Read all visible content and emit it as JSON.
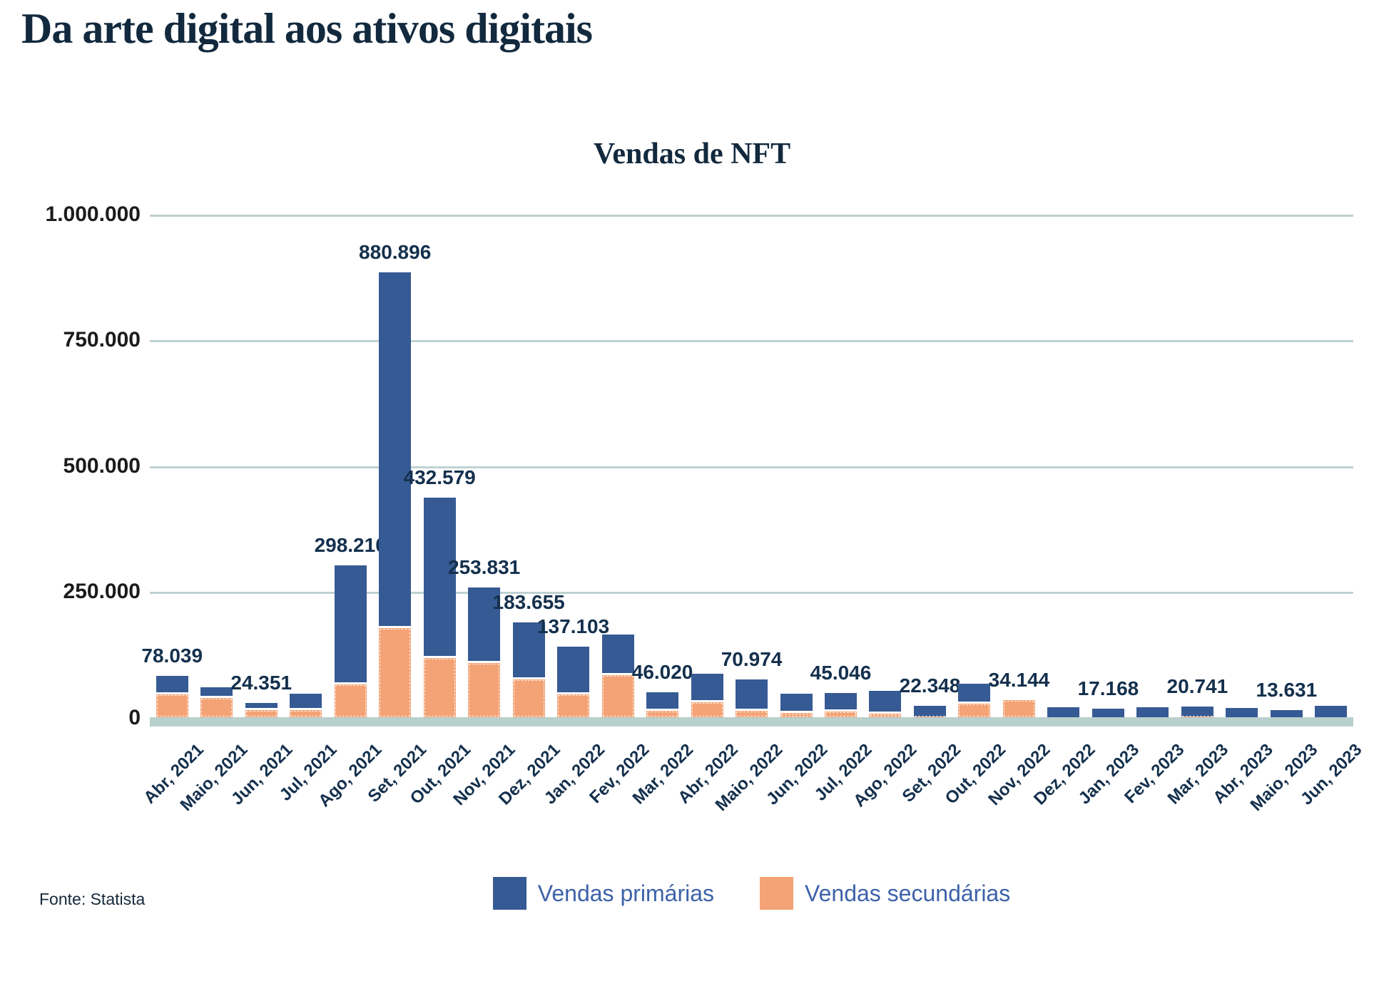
{
  "page": {
    "title": "Da arte digital aos ativos digitais"
  },
  "chart": {
    "title": "Vendas de NFT"
  },
  "y_axis": {
    "ticks": [
      "1.000.000",
      "750.000",
      "500.000",
      "250.000",
      "0"
    ]
  },
  "legend": {
    "primary": "Vendas primárias",
    "secondary": "Vendas secundárias"
  },
  "footer": {
    "source": "Fonte: Statista"
  },
  "colors": {
    "primary": "#365a93",
    "secondary": "#f3a376",
    "grid": "#bfd2d3",
    "axis_band": "#b9d0cd",
    "data_label": "#14304d",
    "legend_text": "#3d61a9",
    "title": "#12293e",
    "tick_text": "#1b1b1b"
  },
  "chart_data": {
    "type": "bar",
    "stacked": true,
    "title": "Vendas de NFT",
    "xlabel": "",
    "ylabel": "",
    "ylim": [
      0,
      1000000
    ],
    "grid": "horizontal",
    "legend_position": "bottom",
    "categories": [
      "Abr, 2021",
      "Maio, 2021",
      "Jun, 2021",
      "Jul, 2021",
      "Ago, 2021",
      "Set, 2021",
      "Out, 2021",
      "Nov, 2021",
      "Dez, 2021",
      "Jan, 2022",
      "Fev, 2022",
      "Mar, 2022",
      "Abr, 2022",
      "Maio, 2022",
      "Jun, 2022",
      "Jul, 2022",
      "Ago, 2022",
      "Set, 2022",
      "Out, 2022",
      "Nov, 2022",
      "Dez, 2022",
      "Jan, 2023",
      "Fev, 2023",
      "Mar, 2023",
      "Abr, 2023",
      "Maio, 2023",
      "Jun, 2023"
    ],
    "series": [
      {
        "name": "Vendas primárias",
        "values": [
          33039,
          17000,
          9851,
          28000,
          233210,
          703896,
          314579,
          145831,
          108655,
          91103,
          76000,
          33020,
          52000,
          57974,
          34000,
          33046,
          41000,
          21348,
          35000,
          0,
          20000,
          17168,
          20000,
          19241,
          19000,
          13631,
          22000
        ]
      },
      {
        "name": "Vendas secundárias",
        "values": [
          45000,
          38000,
          14500,
          14000,
          65000,
          177000,
          118000,
          108000,
          75000,
          46000,
          84000,
          13000,
          30000,
          13000,
          8000,
          12000,
          7000,
          1000,
          27000,
          34144,
          0,
          0,
          0,
          1500,
          0,
          0,
          0
        ]
      }
    ],
    "totals": [
      78039,
      55000,
      24351,
      42000,
      298210,
      880896,
      432579,
      253831,
      183655,
      137103,
      160000,
      46020,
      82000,
      70974,
      42000,
      45046,
      48000,
      22348,
      62000,
      34144,
      20000,
      17168,
      20000,
      20741,
      19000,
      13631,
      22000
    ],
    "data_labels": [
      "78.039",
      "",
      "24.351",
      "",
      "298.210",
      "880.896",
      "432.579",
      "253.831",
      "183.655",
      "137.103",
      "",
      "46.020",
      "",
      "70.974",
      "",
      "45.046",
      "",
      "22.348",
      "",
      "34.144",
      "",
      "17.168",
      "",
      "20.741",
      "",
      "13.631",
      ""
    ],
    "totals_note": "unlabeled bar totals estimated from gridlines"
  }
}
